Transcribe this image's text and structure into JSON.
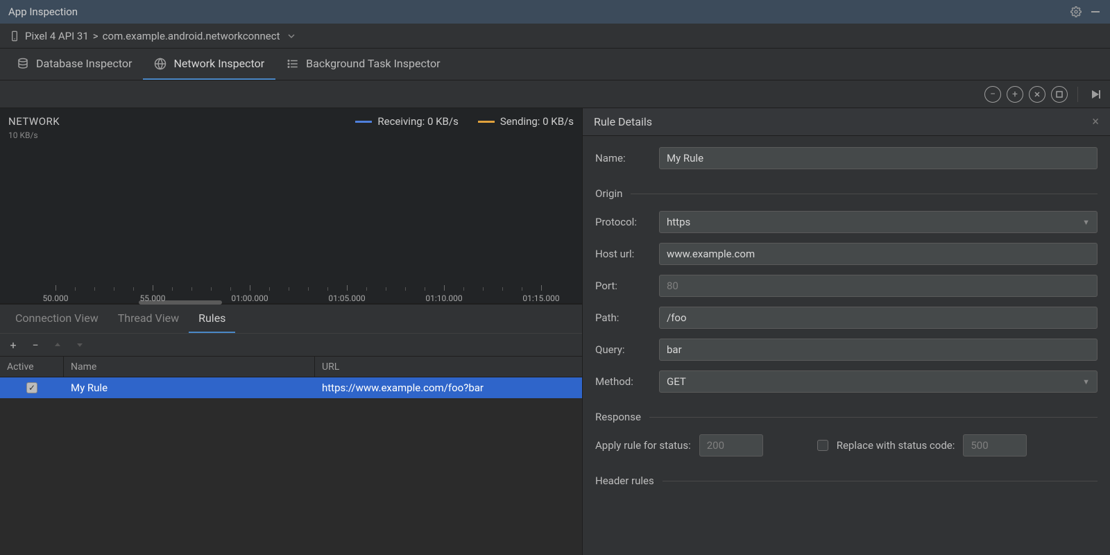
{
  "colors": {
    "titlebar_bg": "#3c4b5b",
    "panel_bg": "#313335",
    "dark_bg": "#222426",
    "selection": "#2f65ca",
    "active_tab": "#4a88c7",
    "receiving": "#4f7fdc",
    "sending": "#e0a13c",
    "border": "#1e1e1e",
    "input_bg": "#45494a",
    "text": "#bbbbbb"
  },
  "titlebar": {
    "title": "App Inspection"
  },
  "breadcrumb": {
    "device": "Pixel 4 API 31",
    "sep": ">",
    "process": "com.example.android.networkconnect"
  },
  "inspector_tabs": [
    {
      "label": "Database Inspector",
      "active": false
    },
    {
      "label": "Network Inspector",
      "active": true
    },
    {
      "label": "Background Task Inspector",
      "active": false
    }
  ],
  "network": {
    "title": "NETWORK",
    "y_label": "10 KB/s",
    "legend": [
      {
        "label": "Receiving: 0 KB/s",
        "color": "#4f7fdc"
      },
      {
        "label": "Sending: 0 KB/s",
        "color": "#e0a13c"
      }
    ],
    "ticks": [
      "50.000",
      "55.000",
      "01:00.000",
      "01:05.000",
      "01:10.000",
      "01:15.000"
    ]
  },
  "subtabs": [
    {
      "label": "Connection View",
      "active": false
    },
    {
      "label": "Thread View",
      "active": false
    },
    {
      "label": "Rules",
      "active": true
    }
  ],
  "rules_table": {
    "columns": [
      "Active",
      "Name",
      "URL"
    ],
    "rows": [
      {
        "active": true,
        "name": "My Rule",
        "url": "https://www.example.com/foo?bar",
        "selected": true
      }
    ]
  },
  "rule_details": {
    "title": "Rule Details",
    "name_label": "Name:",
    "name_value": "My Rule",
    "sections": {
      "origin": "Origin",
      "response": "Response",
      "header_rules": "Header rules"
    },
    "fields": {
      "protocol_label": "Protocol:",
      "protocol_value": "https",
      "host_label": "Host url:",
      "host_value": "www.example.com",
      "port_label": "Port:",
      "port_placeholder": "80",
      "path_label": "Path:",
      "path_value": "/foo",
      "query_label": "Query:",
      "query_value": "bar",
      "method_label": "Method:",
      "method_value": "GET"
    },
    "response": {
      "apply_label": "Apply rule for status:",
      "apply_placeholder": "200",
      "replace_label": "Replace with status code:",
      "replace_placeholder": "500",
      "replace_checked": false
    }
  }
}
